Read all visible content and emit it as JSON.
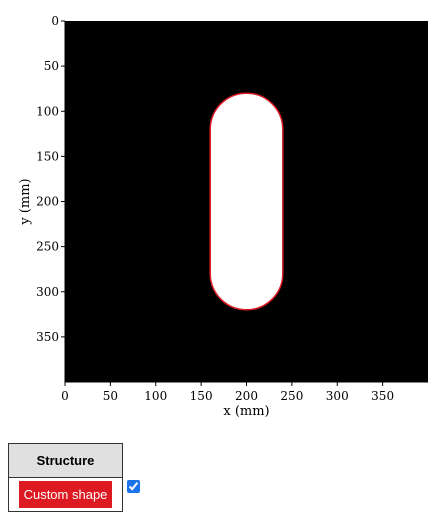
{
  "chart_data": {
    "type": "image",
    "xlabel": "x (mm)",
    "ylabel": "y (mm)",
    "xlim": [
      0,
      400
    ],
    "ylim": [
      400,
      0
    ],
    "x_ticks": [
      "0",
      "50",
      "100",
      "150",
      "200",
      "250",
      "300",
      "350"
    ],
    "y_ticks": [
      "0",
      "50",
      "100",
      "150",
      "200",
      "250",
      "300",
      "350"
    ],
    "background_color": "#000000",
    "shape": {
      "kind": "stadium",
      "x_min": 160,
      "x_max": 240,
      "y_min": 80,
      "y_max": 320,
      "fill_color": "#ffffff",
      "outline_color": "#dd1a21"
    }
  },
  "legend": {
    "header": "Structure",
    "item_label": "Custom shape",
    "item_color": "#dd1a21",
    "checked": true
  }
}
